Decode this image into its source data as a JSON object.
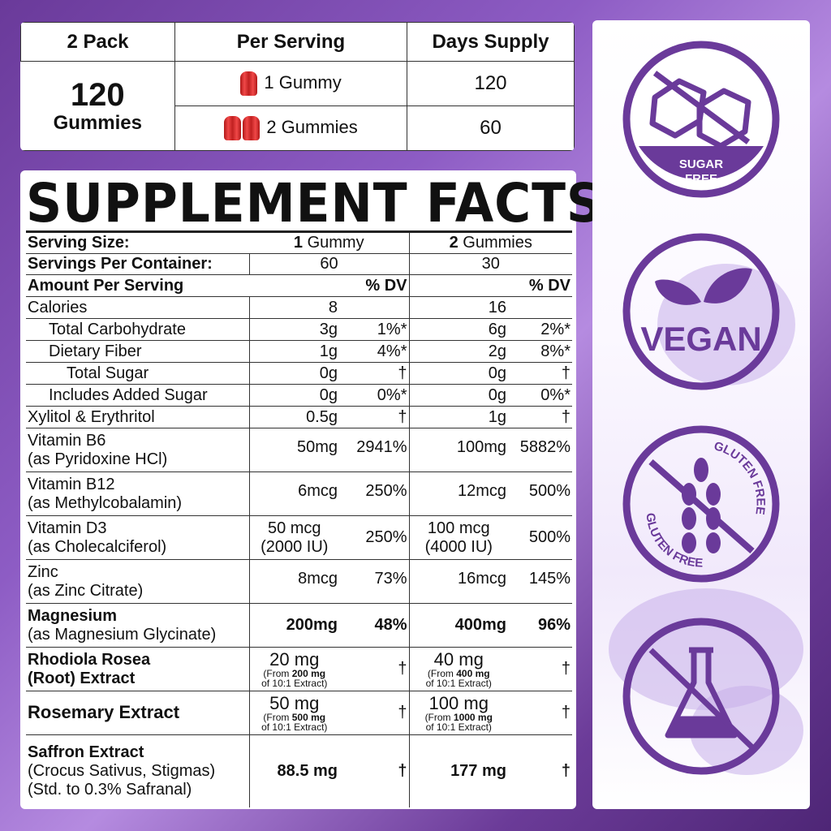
{
  "pack_table": {
    "headers": [
      "2 Pack",
      "Per Serving",
      "Days Supply"
    ],
    "count": "120",
    "count_unit": "Gummies",
    "rows": [
      {
        "serving": "1 Gummy",
        "days": "120"
      },
      {
        "serving": "2 Gummies",
        "days": "60"
      }
    ]
  },
  "facts": {
    "title": "SUPPLEMENT FACTS",
    "serving_size": {
      "label": "Serving Size:",
      "c1_num": "1",
      "c1_unit": " Gummy",
      "c2_num": "2",
      "c2_unit": " Gummies"
    },
    "servings_per_container": {
      "label": "Servings Per Container:",
      "c1": "60",
      "c2": "30"
    },
    "amount_header": {
      "label": "Amount Per Serving",
      "dv1": "% DV",
      "dv2": "% DV"
    },
    "rows": [
      {
        "name": "Calories",
        "a1": "8",
        "d1": "",
        "a2": "16",
        "d2": "",
        "indent": 0
      },
      {
        "name": "Total Carbohydrate",
        "a1": "3g",
        "d1": "1%*",
        "a2": "6g",
        "d2": "2%*",
        "indent": 1
      },
      {
        "name": "Dietary Fiber",
        "a1": "1g",
        "d1": "4%*",
        "a2": "2g",
        "d2": "8%*",
        "indent": 1
      },
      {
        "name": "Total Sugar",
        "a1": "0g",
        "d1": "†",
        "a2": "0g",
        "d2": "†",
        "indent": 2
      },
      {
        "name": "Includes Added Sugar",
        "a1": "0g",
        "d1": "0%*",
        "a2": "0g",
        "d2": "0%*",
        "indent": 1
      },
      {
        "name": "Xylitol & Erythritol",
        "a1": "0.5g",
        "d1": "†",
        "a2": "1g",
        "d2": "†",
        "indent": 0
      },
      {
        "name": "Vitamin B6",
        "sub": "(as Pyridoxine HCl)",
        "a1": "50mg",
        "d1": "2941%",
        "a2": "100mg",
        "d2": "5882%"
      },
      {
        "name": "Vitamin B12",
        "sub": "(as Methylcobalamin)",
        "a1": "6mcg",
        "d1": "250%",
        "a2": "12mcg",
        "d2": "500%"
      },
      {
        "name": "Vitamin D3",
        "sub": "(as Cholecalciferol)",
        "a1": "50 mcg",
        "a1b": "(2000 IU)",
        "d1": "250%",
        "a2": "100 mcg",
        "a2b": "(4000 IU)",
        "d2": "500%"
      },
      {
        "name": "Zinc",
        "sub": "(as Zinc Citrate)",
        "a1": "8mcg",
        "d1": "73%",
        "a2": "16mcg",
        "d2": "145%"
      },
      {
        "name": "Magnesium",
        "sub": "(as Magnesium Glycinate)",
        "a1": "200mg",
        "d1": "48%",
        "a2": "400mg",
        "d2": "96%",
        "bold": true
      },
      {
        "name": "Rhodiola Rosea",
        "name2": "(Root) Extract",
        "a1": "20 mg",
        "n1": "200 mg",
        "d1": "†",
        "a2": "40 mg",
        "n2": "400 mg",
        "d2": "†",
        "extract": true
      },
      {
        "name": "Rosemary Extract",
        "a1": "50 mg",
        "n1": "500 mg",
        "d1": "†",
        "a2": "100 mg",
        "n2": "1000 mg",
        "d2": "†",
        "extract": true
      },
      {
        "name": "Saffron Extract",
        "sub": "(Crocus Sativus, Stigmas)",
        "sub2": "(Std. to 0.3% Safranal)",
        "a1": "88.5 mg",
        "d1": "†",
        "a2": "177 mg",
        "d2": "†",
        "bold": true,
        "tall": true
      }
    ],
    "note_prefix": "(From ",
    "note_suffix": "of 10:1 Extract)"
  },
  "badges": [
    {
      "icon": "sugar-cubes-crossed-icon",
      "label1": "SUGAR",
      "label2": "FREE"
    },
    {
      "icon": "leaves-icon",
      "label1": "VEGAN"
    },
    {
      "icon": "wheat-crossed-icon",
      "label1": "GLUTEN FREE",
      "label2": "GLUTEN FREE"
    },
    {
      "icon": "flask-crossed-icon"
    }
  ],
  "colors": {
    "brand_purple": "#6a3a9a",
    "gummy_red": "#e03030"
  }
}
